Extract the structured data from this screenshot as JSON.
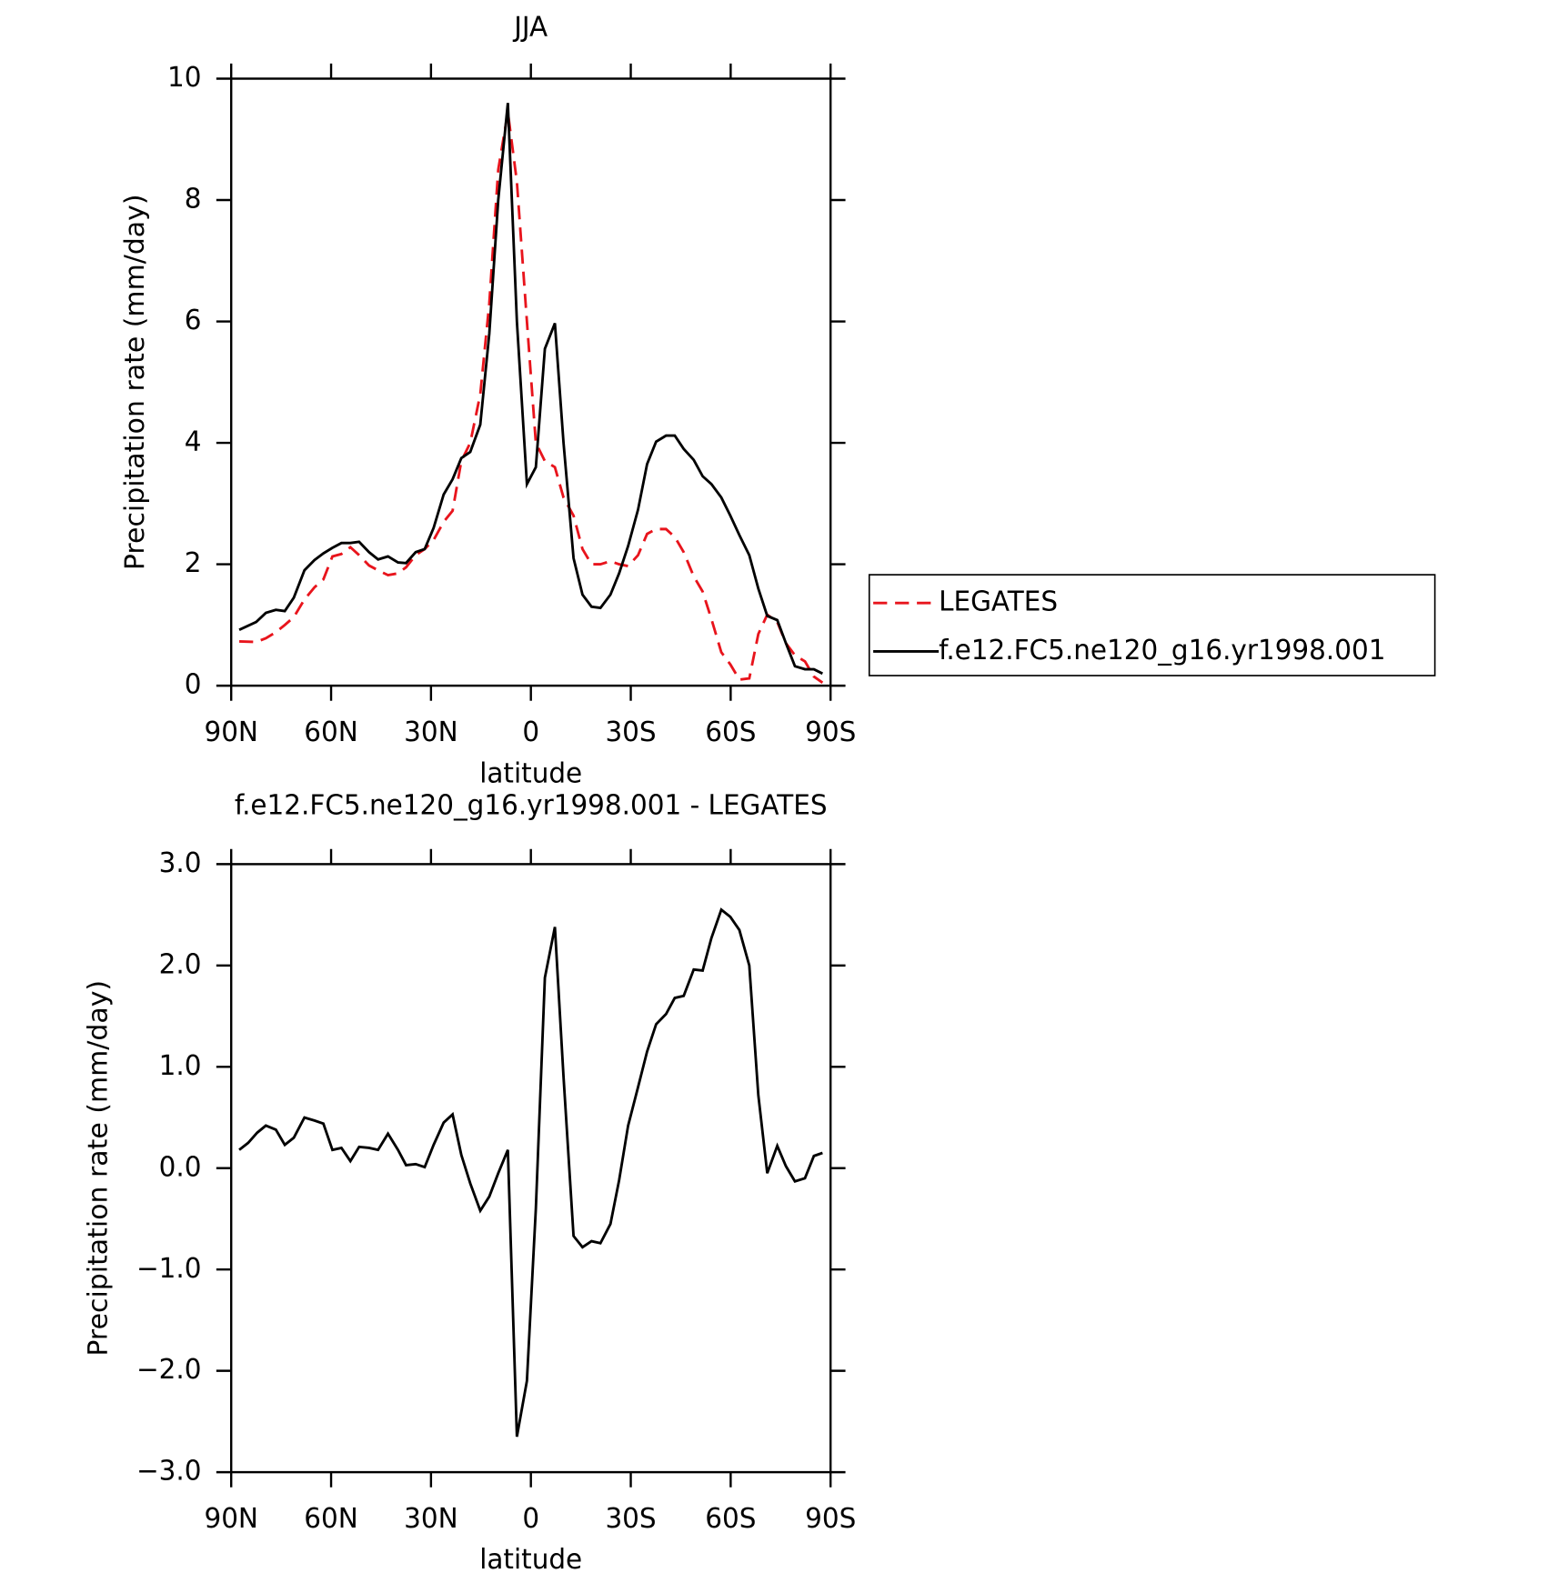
{
  "chart_data": [
    {
      "type": "line",
      "title": "JJA",
      "xlabel": "latitude",
      "ylabel": "Precipitation rate (mm/day)",
      "xlim": [
        90,
        -90
      ],
      "xticks": [
        {
          "value": 90,
          "label": "90N"
        },
        {
          "value": 60,
          "label": "60N"
        },
        {
          "value": 30,
          "label": "30N"
        },
        0,
        {
          "value": -30,
          "label": "30S"
        },
        {
          "value": -60,
          "label": "60S"
        },
        {
          "value": -90,
          "label": "90S"
        }
      ],
      "ylim": [
        0,
        10
      ],
      "yticks": [
        0,
        2,
        4,
        6,
        8,
        10
      ],
      "x": [
        87.6,
        82.5,
        79.6,
        76.6,
        73.9,
        71.2,
        68.0,
        65.0,
        62.3,
        59.6,
        56.9,
        54.2,
        51.6,
        48.6,
        45.9,
        42.9,
        39.9,
        37.5,
        34.6,
        31.9,
        29.2,
        26.2,
        23.5,
        20.9,
        18.2,
        15.2,
        12.5,
        9.8,
        6.9,
        4.2,
        1.2,
        -1.5,
        -4.2,
        -7.2,
        -9.8,
        -12.8,
        -15.5,
        -18.2,
        -20.9,
        -23.9,
        -26.5,
        -29.2,
        -32.2,
        -34.9,
        -37.6,
        -40.6,
        -43.2,
        -45.9,
        -48.9,
        -51.6,
        -54.2,
        -57.2,
        -59.9,
        -62.6,
        -65.6,
        -68.3,
        -71.0,
        -74.0,
        -76.6,
        -79.3,
        -82.3,
        -85.0,
        -87.6
      ],
      "series": [
        {
          "name": "LEGATES",
          "color": "#e8141c",
          "line_style": "dashed",
          "values": [
            0.73,
            0.72,
            0.78,
            0.88,
            1.0,
            1.13,
            1.42,
            1.62,
            1.75,
            2.13,
            2.17,
            2.28,
            2.15,
            1.98,
            1.9,
            1.82,
            1.85,
            1.95,
            2.15,
            2.25,
            2.4,
            2.7,
            2.88,
            3.7,
            4.0,
            4.8,
            6.3,
            8.5,
            9.45,
            8.3,
            6.0,
            4.0,
            3.7,
            3.6,
            3.1,
            2.8,
            2.25,
            2.0,
            2.0,
            2.05,
            2.0,
            1.97,
            2.15,
            2.5,
            2.58,
            2.58,
            2.45,
            2.2,
            1.8,
            1.55,
            1.1,
            0.55,
            0.35,
            0.1,
            0.12,
            0.85,
            1.17,
            1.05,
            0.7,
            0.5,
            0.4,
            0.15,
            0.05
          ]
        },
        {
          "name": "f.e12.FC5.ne120_g16.yr1998.001",
          "color": "#000000",
          "line_style": "solid",
          "values": [
            0.92,
            1.05,
            1.2,
            1.25,
            1.23,
            1.45,
            1.9,
            2.07,
            2.18,
            2.27,
            2.35,
            2.35,
            2.37,
            2.2,
            2.08,
            2.13,
            2.03,
            2.02,
            2.2,
            2.25,
            2.6,
            3.15,
            3.4,
            3.75,
            3.85,
            4.3,
            5.8,
            8.0,
            9.6,
            6.0,
            3.32,
            3.6,
            5.55,
            5.97,
            4.0,
            2.1,
            1.5,
            1.3,
            1.28,
            1.5,
            1.85,
            2.3,
            2.9,
            3.65,
            4.02,
            4.12,
            4.12,
            3.9,
            3.72,
            3.45,
            3.32,
            3.1,
            2.8,
            2.48,
            2.15,
            1.6,
            1.15,
            1.08,
            0.7,
            0.32,
            0.27,
            0.27,
            0.2
          ]
        }
      ]
    },
    {
      "type": "line",
      "title": "f.e12.FC5.ne120_g16.yr1998.001 - LEGATES",
      "xlabel": "latitude",
      "ylabel": "Precipitation rate (mm/day)",
      "xlim": [
        90,
        -90
      ],
      "xticks": [
        {
          "value": 90,
          "label": "90N"
        },
        {
          "value": 60,
          "label": "60N"
        },
        {
          "value": 30,
          "label": "30N"
        },
        0,
        {
          "value": -30,
          "label": "30S"
        },
        {
          "value": -60,
          "label": "60S"
        },
        {
          "value": -90,
          "label": "90S"
        }
      ],
      "ylim": [
        -3,
        3
      ],
      "yticks": [
        {
          "value": -3,
          "label": "−3.0"
        },
        {
          "value": -2,
          "label": "−2.0"
        },
        {
          "value": -1,
          "label": "−1.0"
        },
        {
          "value": 0,
          "label": "0.0"
        },
        {
          "value": 1,
          "label": "1.0"
        },
        {
          "value": 2,
          "label": "2.0"
        },
        {
          "value": 3,
          "label": "3.0"
        }
      ],
      "color": "#000000",
      "x": [
        87.6,
        84.9,
        82.2,
        79.6,
        76.6,
        73.9,
        71.2,
        68.0,
        65.0,
        62.3,
        59.6,
        56.9,
        54.2,
        51.6,
        48.6,
        45.9,
        42.9,
        39.9,
        37.5,
        34.6,
        31.9,
        29.2,
        26.2,
        23.5,
        20.9,
        18.2,
        15.2,
        12.5,
        9.8,
        6.9,
        4.2,
        1.2,
        -1.5,
        -4.2,
        -7.2,
        -9.8,
        -12.8,
        -15.5,
        -18.2,
        -20.9,
        -23.9,
        -26.5,
        -29.2,
        -32.2,
        -34.9,
        -37.6,
        -40.6,
        -43.2,
        -45.9,
        -48.9,
        -51.6,
        -54.2,
        -57.2,
        -59.9,
        -62.6,
        -65.6,
        -68.3,
        -71.0,
        -74.0,
        -76.6,
        -79.3,
        -82.3,
        -85.0,
        -87.6
      ],
      "values": [
        0.18,
        0.25,
        0.35,
        0.42,
        0.38,
        0.23,
        0.3,
        0.5,
        0.47,
        0.44,
        0.18,
        0.2,
        0.07,
        0.21,
        0.2,
        0.18,
        0.34,
        0.18,
        0.03,
        0.04,
        0.01,
        0.23,
        0.45,
        0.53,
        0.13,
        -0.15,
        -0.42,
        -0.28,
        -0.05,
        0.18,
        -2.65,
        -2.1,
        -0.4,
        1.88,
        2.38,
        0.9,
        -0.67,
        -0.78,
        -0.72,
        -0.74,
        -0.55,
        -0.12,
        0.42,
        0.8,
        1.15,
        1.42,
        1.52,
        1.68,
        1.7,
        1.96,
        1.95,
        2.27,
        2.55,
        2.48,
        2.35,
        2.0,
        0.72,
        -0.05,
        0.22,
        0.02,
        -0.13,
        -0.1,
        0.12,
        0.15
      ]
    }
  ]
}
